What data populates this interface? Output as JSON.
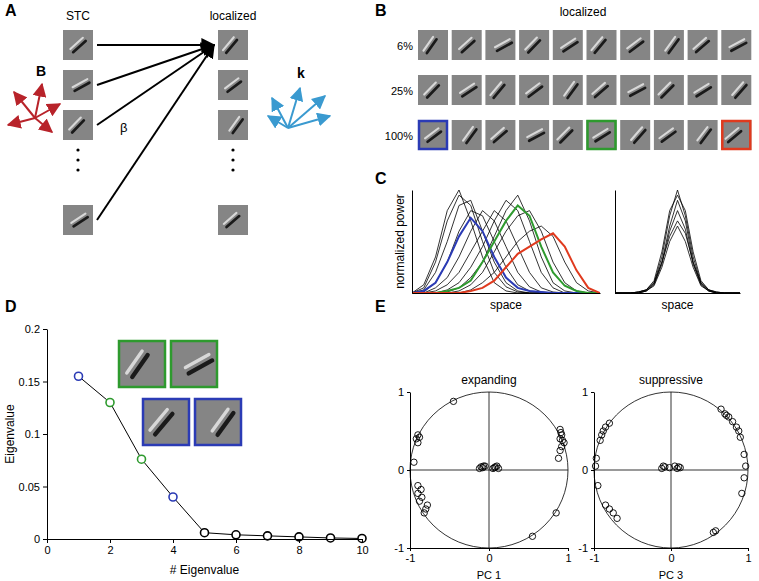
{
  "panel_labels": [
    "A",
    "B",
    "C",
    "D",
    "E"
  ],
  "diagram": {
    "left_title": "STC",
    "right_title": "localized",
    "basis_label": "B",
    "weight_label": "β",
    "filter_label": "k"
  },
  "grid": {
    "title": "localized",
    "rows": [
      "6%",
      "25%",
      "100%"
    ],
    "columns": 10,
    "highlights": [
      {
        "row": 2,
        "column": 0,
        "color": "#2b3bb5"
      },
      {
        "row": 2,
        "column": 5,
        "color": "#2e9a2e"
      },
      {
        "row": 2,
        "column": 9,
        "color": "#e03a1e"
      }
    ]
  },
  "chart_data": [
    {
      "type": "line",
      "y_label": "normalized power",
      "x_label": "space",
      "tick_labels": false,
      "x": [
        0,
        1,
        2,
        3,
        4,
        5,
        6,
        7,
        8,
        9,
        10,
        11,
        12,
        13,
        14,
        15,
        16
      ],
      "xlim": [
        0,
        16
      ],
      "ylim": [
        0,
        1
      ],
      "series": [
        {
          "color": "black",
          "values": [
            0,
            0.05,
            0.3,
            0.7,
            0.95,
            0.85,
            0.5,
            0.2,
            0.06,
            0.01,
            0,
            0,
            0,
            0,
            0,
            0,
            0
          ]
        },
        {
          "color": "black",
          "values": [
            0,
            0.08,
            0.35,
            0.8,
            1.0,
            0.7,
            0.35,
            0.1,
            0.02,
            0,
            0,
            0,
            0,
            0,
            0,
            0,
            0
          ]
        },
        {
          "color": "black",
          "values": [
            0,
            0.03,
            0.2,
            0.5,
            0.85,
            0.9,
            0.6,
            0.3,
            0.1,
            0.02,
            0,
            0,
            0,
            0,
            0,
            0,
            0
          ]
        },
        {
          "color": "black",
          "values": [
            0,
            0.01,
            0.1,
            0.3,
            0.6,
            0.8,
            0.75,
            0.5,
            0.25,
            0.08,
            0.02,
            0,
            0,
            0,
            0,
            0,
            0
          ]
        },
        {
          "color": "black",
          "values": [
            0,
            0,
            0.05,
            0.15,
            0.35,
            0.6,
            0.8,
            0.7,
            0.45,
            0.2,
            0.06,
            0.01,
            0,
            0,
            0,
            0,
            0
          ]
        },
        {
          "color": "black",
          "values": [
            0,
            0,
            0.02,
            0.08,
            0.2,
            0.4,
            0.6,
            0.8,
            0.7,
            0.45,
            0.2,
            0.05,
            0.01,
            0,
            0,
            0,
            0
          ]
        },
        {
          "color": "black",
          "values": [
            0,
            0,
            0,
            0.03,
            0.1,
            0.25,
            0.45,
            0.7,
            0.9,
            0.8,
            0.5,
            0.2,
            0.05,
            0,
            0,
            0,
            0
          ]
        },
        {
          "color": "black",
          "values": [
            0,
            0,
            0,
            0.01,
            0.05,
            0.15,
            0.3,
            0.55,
            0.8,
            0.95,
            0.7,
            0.35,
            0.1,
            0.02,
            0,
            0,
            0
          ]
        },
        {
          "color": "black",
          "values": [
            0,
            0,
            0,
            0,
            0.02,
            0.08,
            0.2,
            0.4,
            0.6,
            0.75,
            0.8,
            0.6,
            0.3,
            0.1,
            0.02,
            0,
            0
          ]
        },
        {
          "color": "black",
          "values": [
            0,
            0,
            0,
            0,
            0,
            0.03,
            0.1,
            0.2,
            0.35,
            0.5,
            0.6,
            0.65,
            0.55,
            0.3,
            0.1,
            0.02,
            0
          ]
        },
        {
          "color": "#2b3bb5",
          "values": [
            0,
            0.02,
            0.1,
            0.3,
            0.55,
            0.73,
            0.6,
            0.35,
            0.15,
            0.05,
            0.02,
            0.01,
            0,
            0,
            0,
            0,
            0
          ]
        },
        {
          "color": "#2e9a2e",
          "values": [
            0,
            0,
            0,
            0.02,
            0.05,
            0.12,
            0.3,
            0.5,
            0.7,
            0.85,
            0.75,
            0.45,
            0.2,
            0.07,
            0.02,
            0,
            0
          ]
        },
        {
          "color": "#e03a1e",
          "values": [
            0,
            0,
            0,
            0,
            0,
            0.02,
            0.05,
            0.12,
            0.25,
            0.38,
            0.45,
            0.52,
            0.58,
            0.45,
            0.22,
            0.05,
            0
          ]
        }
      ]
    },
    {
      "type": "line",
      "x_label": "space",
      "tick_labels": false,
      "x": [
        0,
        1,
        2,
        3,
        4,
        5,
        6,
        7,
        8,
        9,
        10,
        11,
        12,
        13,
        14,
        15,
        16
      ],
      "xlim": [
        0,
        16
      ],
      "ylim": [
        0,
        1
      ],
      "series": [
        {
          "color": "black",
          "values": [
            0,
            0,
            0,
            0.01,
            0.03,
            0.1,
            0.35,
            0.75,
            1.0,
            0.75,
            0.35,
            0.1,
            0.03,
            0.01,
            0,
            0,
            0
          ]
        },
        {
          "color": "black",
          "values": [
            0,
            0,
            0,
            0.01,
            0.03,
            0.1,
            0.3,
            0.65,
            0.9,
            0.7,
            0.3,
            0.1,
            0.03,
            0,
            0,
            0,
            0
          ]
        },
        {
          "color": "black",
          "values": [
            0,
            0,
            0,
            0,
            0.02,
            0.08,
            0.28,
            0.6,
            0.8,
            0.62,
            0.28,
            0.08,
            0.02,
            0,
            0,
            0,
            0
          ]
        },
        {
          "color": "black",
          "values": [
            0,
            0,
            0,
            0,
            0.02,
            0.07,
            0.25,
            0.5,
            0.65,
            0.5,
            0.25,
            0.07,
            0.02,
            0,
            0,
            0,
            0
          ]
        },
        {
          "color": "black",
          "values": [
            0,
            0,
            0,
            0.01,
            0.03,
            0.12,
            0.4,
            0.8,
            0.95,
            0.8,
            0.4,
            0.12,
            0.03,
            0.01,
            0,
            0,
            0
          ]
        },
        {
          "color": "black",
          "values": [
            0,
            0,
            0,
            0,
            0.02,
            0.09,
            0.3,
            0.55,
            0.7,
            0.58,
            0.3,
            0.09,
            0.02,
            0,
            0,
            0,
            0
          ]
        }
      ]
    },
    {
      "type": "line",
      "x_label": "# Eigenvalue",
      "y_label": "Eigenvalue",
      "marker": "circle",
      "color": "black",
      "x": [
        1,
        2,
        3,
        4,
        5,
        6,
        7,
        8,
        9,
        10
      ],
      "values": [
        0.155,
        0.13,
        0.076,
        0.04,
        0.006,
        0.004,
        0.003,
        0.002,
        0.001,
        0.0005
      ],
      "colors": [
        "#2b3bb5",
        "#2e9a2e",
        "#2e9a2e",
        "#2b3bb5",
        "black",
        "black",
        "black",
        "black",
        "black",
        "black"
      ],
      "xlim": [
        0,
        10
      ],
      "xticks": [
        0,
        2,
        4,
        6,
        8,
        10
      ],
      "ylim": [
        0,
        0.2
      ],
      "yticks": [
        0,
        0.05,
        0.1,
        0.15,
        0.2
      ],
      "insets": [
        {
          "color": "#2e9a2e",
          "count": 2
        },
        {
          "color": "#2b3bb5",
          "count": 2
        }
      ]
    },
    {
      "type": "scatter",
      "title": "expanding",
      "x_label": "PC 1",
      "marker": "circle",
      "color": "black",
      "x": [
        0.92,
        0.9,
        0.93,
        0.91,
        0.9,
        0.95,
        0.92,
        0.9,
        0.88,
        -0.9,
        -0.92,
        -0.88,
        -0.9,
        -0.95,
        -0.45,
        -0.9,
        -0.85,
        -0.88,
        -0.8,
        -0.82,
        -0.9,
        -0.78,
        -0.86,
        0.85,
        0.55,
        -0.12,
        -0.1,
        -0.08,
        -0.05,
        0.05,
        0.08,
        0.1,
        0.12,
        0.07,
        -0.07
      ],
      "values": [
        0.45,
        0.4,
        0.38,
        0.48,
        0.52,
        0.35,
        0.3,
        0.25,
        0.15,
        0.45,
        0.4,
        0.42,
        0.35,
        0.1,
        0.88,
        -0.3,
        -0.35,
        -0.4,
        -0.5,
        -0.55,
        -0.2,
        -0.45,
        -0.25,
        -0.55,
        -0.85,
        0.02,
        0.04,
        0.03,
        0.05,
        0.02,
        0.04,
        0.05,
        0.02,
        0.03,
        0.05
      ],
      "xlim": [
        -1,
        1
      ],
      "xticks": [
        -1,
        0,
        1
      ],
      "ylim": [
        -1,
        1
      ],
      "yticks": [
        -1,
        0,
        1
      ]
    },
    {
      "type": "scatter",
      "title": "suppressive",
      "x_label": "PC 3",
      "marker": "circle",
      "color": "black",
      "x": [
        0.65,
        0.7,
        0.75,
        0.8,
        0.85,
        0.88,
        0.9,
        0.72,
        0.95,
        0.97,
        0.95,
        0.92,
        0.55,
        0.58,
        -0.9,
        -0.88,
        -0.85,
        -0.8,
        -0.92,
        -0.97,
        -0.98,
        -0.95,
        -0.8,
        -0.75,
        -0.85,
        -0.7,
        -0.12,
        -0.08,
        -0.02,
        0.05,
        0.08,
        0.1,
        -0.1,
        0.12
      ],
      "values": [
        0.78,
        0.72,
        0.68,
        0.62,
        0.55,
        0.5,
        0.42,
        0.7,
        0.2,
        0.05,
        -0.1,
        -0.3,
        -0.8,
        -0.78,
        0.45,
        0.5,
        0.55,
        0.6,
        0.38,
        0.15,
        0.05,
        -0.2,
        -0.5,
        -0.55,
        -0.45,
        -0.62,
        0.02,
        0.04,
        0.03,
        0.05,
        0.02,
        0.04,
        0.05,
        0.03
      ],
      "xlim": [
        -1,
        1
      ],
      "xticks": [
        -1,
        0,
        1
      ],
      "ylim": [
        -1,
        1
      ],
      "yticks": [
        -1,
        0,
        1
      ]
    }
  ]
}
